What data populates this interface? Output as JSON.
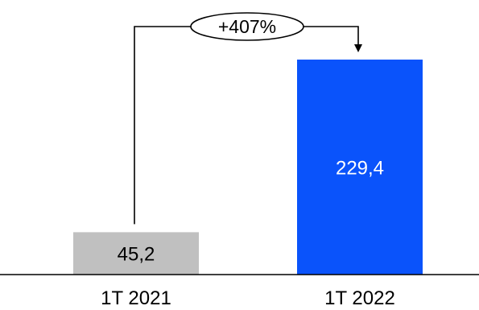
{
  "chart_data": {
    "type": "bar",
    "categories": [
      "1T 2021",
      "1T 2022"
    ],
    "values": [
      45.2,
      229.4
    ],
    "value_labels": [
      "45,2",
      "229,4"
    ],
    "bar_colors": [
      "#c0c0c0",
      "#0a53fb"
    ],
    "value_label_colors": [
      "#000000",
      "#ffffff"
    ],
    "annotation": {
      "text": "+407%",
      "from": "1T 2021",
      "to": "1T 2022"
    },
    "ylim": [
      0,
      229.4
    ],
    "grid": false,
    "legend": "none"
  }
}
